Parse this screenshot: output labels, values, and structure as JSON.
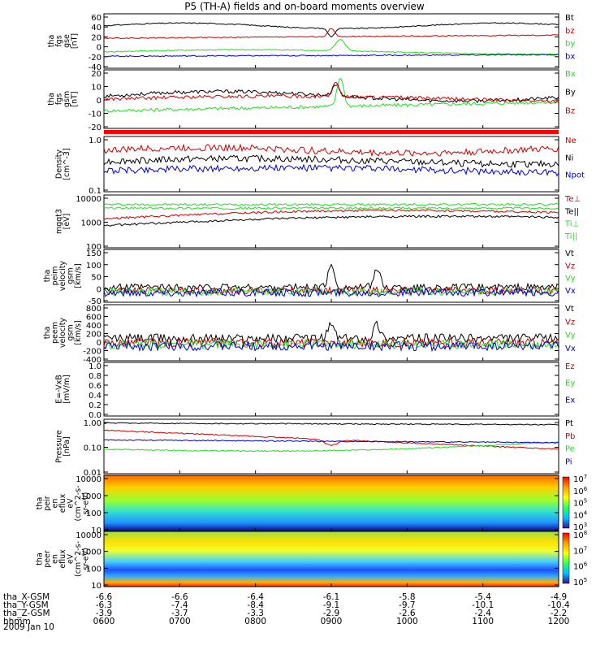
{
  "title": "P5 (TH-A) fields and on-board moments overview",
  "date": "2009 Jan 10",
  "colors": {
    "black": "#000000",
    "red": "#cc0000",
    "green": "#22dd22",
    "blue": "#0000cc"
  },
  "chart_data": [
    {
      "type": "line",
      "id": "fgs-gse",
      "ylabel": [
        "tha",
        "fgs",
        "gse",
        "[nT]"
      ],
      "yticks": [
        "60",
        "40",
        "20",
        "0",
        "-20",
        "-40"
      ],
      "series": [
        {
          "name": "Bt",
          "color": "black"
        },
        {
          "name": "bz",
          "color": "red"
        },
        {
          "name": "by",
          "color": "green"
        },
        {
          "name": "bx",
          "color": "blue"
        }
      ]
    },
    {
      "type": "line",
      "id": "fgs-gsm",
      "ylabel": [
        "tha",
        "fgs",
        "gsm",
        "[nT]"
      ],
      "yticks": [
        "20",
        "10",
        "0",
        "-10",
        "-20"
      ],
      "series": [
        {
          "name": "Bx",
          "color": "green"
        },
        {
          "name": "By",
          "color": "black"
        },
        {
          "name": "Bz",
          "color": "red"
        }
      ]
    },
    {
      "type": "line",
      "id": "density",
      "ylabel": [
        "Density",
        "[cm^-3]"
      ],
      "yticks": [
        "1.0",
        "0.1"
      ],
      "series": [
        {
          "name": "Ne",
          "color": "red"
        },
        {
          "name": "Ni",
          "color": "black"
        },
        {
          "name": "Npot",
          "color": "blue"
        }
      ]
    },
    {
      "type": "line",
      "id": "temperature",
      "ylabel": [
        "mgqt3",
        "[eV]"
      ],
      "yticks": [
        "10000",
        "1000",
        "100"
      ],
      "series": [
        {
          "name": "Te⊥",
          "color": "red"
        },
        {
          "name": "Te||",
          "color": "black"
        },
        {
          "name": "Ti⊥",
          "color": "green"
        },
        {
          "name": "Ti||",
          "color": "green"
        }
      ]
    },
    {
      "type": "line",
      "id": "peim-velocity",
      "ylabel": [
        "tha",
        "peim",
        "velocity",
        "gsm",
        "[km/s]"
      ],
      "yticks": [
        "150",
        "100",
        "50",
        "0",
        "-50"
      ],
      "series": [
        {
          "name": "Vt",
          "color": "black"
        },
        {
          "name": "Vz",
          "color": "red"
        },
        {
          "name": "Vy",
          "color": "green"
        },
        {
          "name": "Vx",
          "color": "blue"
        }
      ]
    },
    {
      "type": "line",
      "id": "peem-velocity",
      "ylabel": [
        "tha",
        "peem",
        "velocity",
        "gsm",
        "[km/s]"
      ],
      "yticks": [
        "800",
        "600",
        "400",
        "200",
        "0",
        "-200",
        "-400"
      ],
      "series": [
        {
          "name": "Vt",
          "color": "black"
        },
        {
          "name": "Vz",
          "color": "red"
        },
        {
          "name": "Vy",
          "color": "green"
        },
        {
          "name": "Vx",
          "color": "blue"
        }
      ]
    },
    {
      "type": "line",
      "id": "efield",
      "ylabel": [
        "E=-VxB",
        "[mV/m]"
      ],
      "yticks": [
        "1.0",
        "0.8",
        "0.6",
        "0.4",
        "0.2",
        "0.0"
      ],
      "series": [
        {
          "name": "Ez",
          "color": "red"
        },
        {
          "name": "Ey",
          "color": "green"
        },
        {
          "name": "Ex",
          "color": "blue"
        }
      ]
    },
    {
      "type": "line",
      "id": "pressure",
      "ylabel": [
        "Pressure",
        "[nPa]"
      ],
      "yticks": [
        "1.00",
        "0.10",
        "0.01"
      ],
      "series": [
        {
          "name": "Pt",
          "color": "black"
        },
        {
          "name": "Pb",
          "color": "red"
        },
        {
          "name": "Pe",
          "color": "green"
        },
        {
          "name": "Pi",
          "color": "blue"
        }
      ]
    },
    {
      "type": "heatmap",
      "id": "peir-eflux",
      "ylabel": [
        "tha",
        "peir",
        "en",
        "eflux",
        "eV",
        "(cm^2-s-",
        "sr-eV)"
      ],
      "yticks": [
        "10000",
        "1000",
        "100",
        "10"
      ],
      "colorbar": [
        "10^7",
        "10^6",
        "10^5",
        "10^4",
        "10^3"
      ]
    },
    {
      "type": "heatmap",
      "id": "peer-eflux",
      "ylabel": [
        "tha",
        "peer",
        "en",
        "eflux",
        "eV",
        "(cm^2-s-",
        "sr-eV)"
      ],
      "yticks": [
        "10000",
        "1000",
        "100",
        "10"
      ],
      "colorbar": [
        "10^8",
        "10^7",
        "10^6",
        "10^5"
      ]
    }
  ],
  "x_axis": {
    "rows": [
      {
        "label": "tha_X-GSM",
        "values": [
          "-6.6",
          "-6.6",
          "-6.4",
          "-6.1",
          "-5.8",
          "-5.4",
          "-4.9"
        ]
      },
      {
        "label": "tha_Y-GSM",
        "values": [
          "-6.3",
          "-7.4",
          "-8.4",
          "-9.1",
          "-9.7",
          "-10.1",
          "-10.4"
        ]
      },
      {
        "label": "tha_Z-GSM",
        "values": [
          "-3.9",
          "-3.7",
          "-3.3",
          "-2.9",
          "-2.6",
          "-2.4",
          "-2.2"
        ]
      },
      {
        "label": "hhmm",
        "values": [
          "0600",
          "0700",
          "0800",
          "0900",
          "1000",
          "1100",
          "1200"
        ]
      }
    ]
  }
}
